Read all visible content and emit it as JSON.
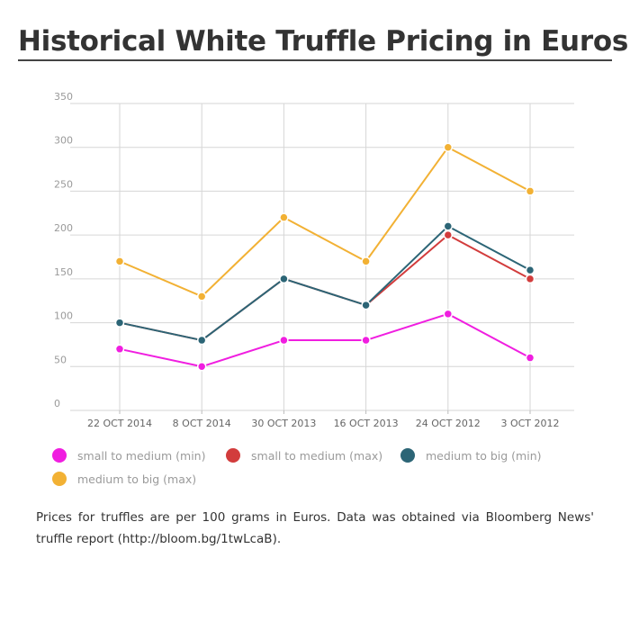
{
  "chart_data": {
    "type": "line",
    "title": "Historical White Truffle Pricing in Euros",
    "categories": [
      "22 OCT 2014",
      "8 OCT 2014",
      "30 OCT 2013",
      "16 OCT 2013",
      "24 OCT 2012",
      "3 OCT 2012"
    ],
    "yticks": [
      "0",
      "50",
      "100",
      "150",
      "200",
      "250",
      "300",
      "350"
    ],
    "ylim": [
      0,
      350
    ],
    "grid": true,
    "legend_position": "bottom",
    "series": [
      {
        "name": "small to medium (min)",
        "color": "#f01ee0",
        "values": [
          70,
          50,
          80,
          80,
          110,
          60
        ]
      },
      {
        "name": "small to medium (max)",
        "color": "#d23c3c",
        "values": [
          100,
          80,
          150,
          120,
          200,
          150
        ]
      },
      {
        "name": "medium to big (min)",
        "color": "#2c6576",
        "values": [
          100,
          80,
          150,
          120,
          210,
          160
        ]
      },
      {
        "name": "medium to big (max)",
        "color": "#f2b134",
        "values": [
          170,
          130,
          220,
          170,
          300,
          250
        ]
      }
    ]
  },
  "caption": "Prices for truffles are per 100 grams in Euros. Data was obtained via Bloomberg News' truffle report (http://bloom.bg/1twLcaB)."
}
